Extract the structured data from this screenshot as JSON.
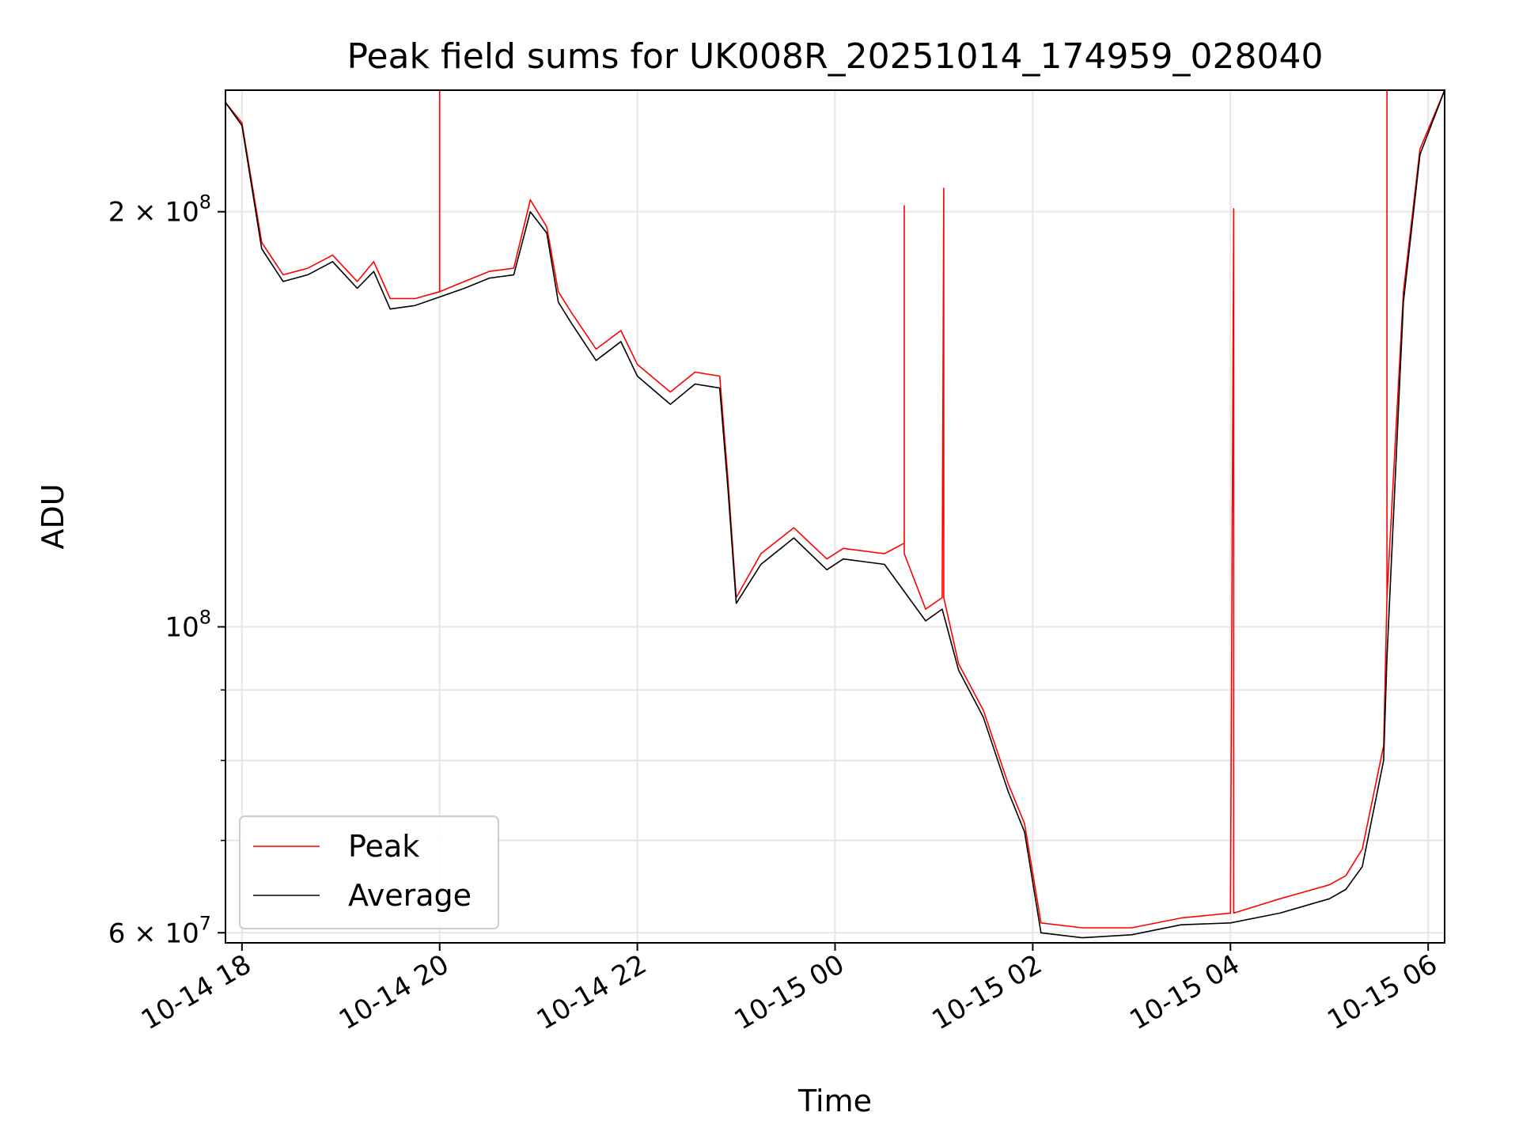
{
  "chart_data": {
    "type": "line",
    "title": "Peak field sums for UK008R_20251014_174959_028040",
    "xlabel": "Time",
    "ylabel": "ADU",
    "y_scale": "log",
    "xlim": [
      "2025-10-14 17:50",
      "2025-10-15 06:10"
    ],
    "ylim": [
      59000000,
      245000000
    ],
    "grid": true,
    "legend_position": "lower-left",
    "x_ticks": [
      {
        "value": "2025-10-14 18:00",
        "label": "10-14 18"
      },
      {
        "value": "2025-10-14 20:00",
        "label": "10-14 20"
      },
      {
        "value": "2025-10-14 22:00",
        "label": "10-14 22"
      },
      {
        "value": "2025-10-15 00:00",
        "label": "10-15 00"
      },
      {
        "value": "2025-10-15 02:00",
        "label": "10-15 02"
      },
      {
        "value": "2025-10-15 04:00",
        "label": "10-15 04"
      },
      {
        "value": "2025-10-15 06:00",
        "label": "10-15 06"
      }
    ],
    "y_ticks": [
      {
        "value": 60000000,
        "label_base": "6 × 10",
        "label_exp": "7"
      },
      {
        "value": 100000000,
        "label_base": "10",
        "label_exp": "8"
      },
      {
        "value": 200000000,
        "label_base": "2 × 10",
        "label_exp": "8"
      }
    ],
    "y_minor_ticks": [
      70000000,
      80000000,
      90000000
    ],
    "series": [
      {
        "name": "Peak",
        "color": "#ff0000",
        "x": [
          "2025-10-14 17:50",
          "2025-10-14 18:00",
          "2025-10-14 18:12",
          "2025-10-14 18:25",
          "2025-10-14 18:40",
          "2025-10-14 18:55",
          "2025-10-14 19:10",
          "2025-10-14 19:20",
          "2025-10-14 19:30",
          "2025-10-14 19:45",
          "2025-10-14 20:00",
          "2025-10-14 20:00",
          "2025-10-14 20:00",
          "2025-10-14 20:15",
          "2025-10-14 20:30",
          "2025-10-14 20:45",
          "2025-10-14 20:55",
          "2025-10-14 21:05",
          "2025-10-14 21:12",
          "2025-10-14 21:20",
          "2025-10-14 21:35",
          "2025-10-14 21:50",
          "2025-10-14 22:00",
          "2025-10-14 22:20",
          "2025-10-14 22:35",
          "2025-10-14 22:50",
          "2025-10-14 22:55",
          "2025-10-14 23:00",
          "2025-10-14 23:15",
          "2025-10-14 23:35",
          "2025-10-14 23:55",
          "2025-10-15 00:05",
          "2025-10-15 00:30",
          "2025-10-15 00:42",
          "2025-10-15 00:42",
          "2025-10-15 00:42",
          "2025-10-15 00:55",
          "2025-10-15 01:05",
          "2025-10-15 01:06",
          "2025-10-15 01:06",
          "2025-10-15 01:15",
          "2025-10-15 01:30",
          "2025-10-15 01:45",
          "2025-10-15 01:55",
          "2025-10-15 02:05",
          "2025-10-15 02:30",
          "2025-10-15 03:00",
          "2025-10-15 03:30",
          "2025-10-15 04:00",
          "2025-10-15 04:02",
          "2025-10-15 04:02",
          "2025-10-15 04:02",
          "2025-10-15 04:30",
          "2025-10-15 05:00",
          "2025-10-15 05:10",
          "2025-10-15 05:20",
          "2025-10-15 05:33",
          "2025-10-15 05:35",
          "2025-10-15 05:35",
          "2025-10-15 05:35",
          "2025-10-15 05:45",
          "2025-10-15 05:55",
          "2025-10-15 06:10"
        ],
        "y": [
          240000000,
          232000000,
          190000000,
          180000000,
          182000000,
          186000000,
          178000000,
          184000000,
          173000000,
          173000000,
          175000000,
          245000000,
          175000000,
          178000000,
          181000000,
          182000000,
          204000000,
          195000000,
          175000000,
          169000000,
          159000000,
          164000000,
          155000000,
          148000000,
          153000000,
          152000000,
          128000000,
          105000000,
          113000000,
          118000000,
          112000000,
          114000000,
          113000000,
          115000000,
          202000000,
          113000000,
          103000000,
          105000000,
          208000000,
          105000000,
          94000000,
          87000000,
          77000000,
          72000000,
          61000000,
          60500000,
          60500000,
          61500000,
          62000000,
          201000000,
          62000000,
          62000000,
          63500000,
          65000000,
          66000000,
          69000000,
          82000000,
          105000000,
          245000000,
          105000000,
          175000000,
          222000000,
          245000000
        ]
      },
      {
        "name": "Average",
        "color": "#000000",
        "x": [
          "2025-10-14 17:50",
          "2025-10-14 18:00",
          "2025-10-14 18:12",
          "2025-10-14 18:25",
          "2025-10-14 18:40",
          "2025-10-14 18:55",
          "2025-10-14 19:10",
          "2025-10-14 19:20",
          "2025-10-14 19:30",
          "2025-10-14 19:45",
          "2025-10-14 20:15",
          "2025-10-14 20:30",
          "2025-10-14 20:45",
          "2025-10-14 20:55",
          "2025-10-14 21:05",
          "2025-10-14 21:12",
          "2025-10-14 21:20",
          "2025-10-14 21:35",
          "2025-10-14 21:50",
          "2025-10-14 22:00",
          "2025-10-14 22:20",
          "2025-10-14 22:35",
          "2025-10-14 22:50",
          "2025-10-14 22:55",
          "2025-10-14 23:00",
          "2025-10-14 23:15",
          "2025-10-14 23:35",
          "2025-10-14 23:55",
          "2025-10-15 00:05",
          "2025-10-15 00:30",
          "2025-10-15 00:55",
          "2025-10-15 01:05",
          "2025-10-15 01:15",
          "2025-10-15 01:30",
          "2025-10-15 01:45",
          "2025-10-15 01:55",
          "2025-10-15 02:05",
          "2025-10-15 02:30",
          "2025-10-15 03:00",
          "2025-10-15 03:30",
          "2025-10-15 04:00",
          "2025-10-15 04:30",
          "2025-10-15 05:00",
          "2025-10-15 05:10",
          "2025-10-15 05:20",
          "2025-10-15 05:33",
          "2025-10-15 05:35",
          "2025-10-15 05:45",
          "2025-10-15 05:55",
          "2025-10-15 06:10"
        ],
        "y": [
          240000000,
          231000000,
          188000000,
          178000000,
          180000000,
          184000000,
          176000000,
          181000000,
          170000000,
          171000000,
          176000000,
          179000000,
          180000000,
          200000000,
          193000000,
          172000000,
          166000000,
          156000000,
          161000000,
          152000000,
          145000000,
          150000000,
          149000000,
          126000000,
          104000000,
          111000000,
          116000000,
          110000000,
          112000000,
          111000000,
          101000000,
          103000000,
          93000000,
          86000000,
          76000000,
          71000000,
          60000000,
          59500000,
          59800000,
          60800000,
          61000000,
          62000000,
          63500000,
          64500000,
          67000000,
          80000000,
          95000000,
          172000000,
          220000000,
          245000000
        ]
      }
    ]
  }
}
